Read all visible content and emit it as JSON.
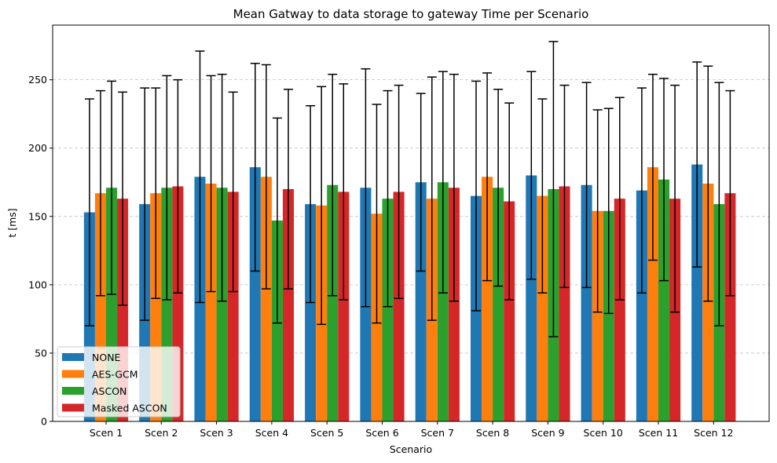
{
  "chart_data": {
    "type": "bar",
    "title": "Mean Gatway to data storage to gateway Time per Scenario",
    "xlabel": "Scenario",
    "ylabel": "t [ms]",
    "categories": [
      "Scen 1",
      "Scen 2",
      "Scen 3",
      "Scen 4",
      "Scen 5",
      "Scen 6",
      "Scen 7",
      "Scen 8",
      "Scen 9",
      "Scen 10",
      "Scen 11",
      "Scen 12"
    ],
    "ylim": [
      0,
      290
    ],
    "yticks": [
      0,
      50,
      100,
      150,
      200,
      250
    ],
    "grid": "y-dashed",
    "legend_position": "bottom-left",
    "series": [
      {
        "name": "NONE",
        "color": "#1f77b4",
        "values": [
          153,
          159,
          179,
          186,
          159,
          171,
          175,
          165,
          180,
          173,
          169,
          188
        ],
        "errors": [
          83,
          85,
          92,
          76,
          72,
          87,
          65,
          84,
          76,
          75,
          75,
          75
        ]
      },
      {
        "name": "AES-GCM",
        "color": "#ff7f0e",
        "values": [
          167,
          167,
          174,
          179,
          158,
          152,
          163,
          179,
          165,
          154,
          186,
          174
        ],
        "errors": [
          75,
          77,
          79,
          82,
          87,
          80,
          89,
          76,
          71,
          74,
          68,
          86
        ]
      },
      {
        "name": "ASCON",
        "color": "#2ca02c",
        "values": [
          171,
          171,
          171,
          147,
          173,
          163,
          175,
          171,
          170,
          154,
          177,
          159
        ],
        "errors": [
          78,
          82,
          83,
          75,
          81,
          79,
          81,
          72,
          108,
          75,
          74,
          89
        ]
      },
      {
        "name": "Masked ASCON",
        "color": "#d62728",
        "values": [
          163,
          172,
          168,
          170,
          168,
          168,
          171,
          161,
          172,
          163,
          163,
          167
        ],
        "errors": [
          78,
          78,
          73,
          73,
          79,
          78,
          83,
          72,
          74,
          74,
          83,
          75
        ]
      }
    ]
  }
}
